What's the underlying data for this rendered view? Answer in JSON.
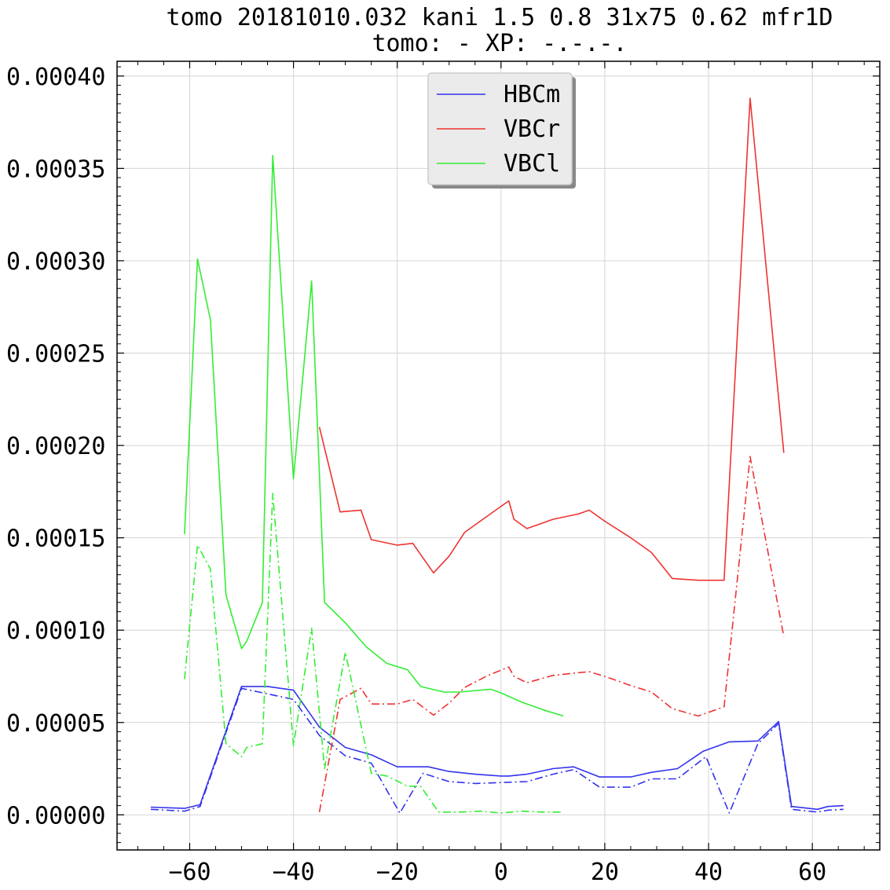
{
  "chart_data": {
    "type": "line",
    "title_lines": [
      "tomo 20181010.032 kani 1.5 0.8 31x75 0.62 mfr1D",
      "tomo: -   XP: -.-.-."
    ],
    "xlabel": "",
    "ylabel": "",
    "xlim": [
      -74,
      73
    ],
    "ylim": [
      -1.9e-05,
      0.000408
    ],
    "x_ticks": [
      -60,
      -40,
      -20,
      0,
      20,
      40,
      60
    ],
    "x_tick_labels": [
      "−60",
      "−40",
      "−20",
      "0",
      "20",
      "40",
      "60"
    ],
    "y_ticks": [
      0.0,
      5e-05,
      0.0001,
      0.00015,
      0.0002,
      0.00025,
      0.0003,
      0.00035,
      0.0004
    ],
    "y_tick_labels": [
      "0.00000",
      "0.00005",
      "0.00010",
      "0.00015",
      "0.00020",
      "0.00025",
      "0.00030",
      "0.00035",
      "0.00040"
    ],
    "grid": true,
    "legend_position": "top-center",
    "series": [
      {
        "name": "HBCm",
        "color": "#3333ee",
        "style": "solid",
        "points": [
          [
            -67.5,
            4.2e-06
          ],
          [
            -61,
            3.5e-06
          ],
          [
            -58,
            5.5e-06
          ],
          [
            -50,
            6.95e-05
          ],
          [
            -45,
            6.95e-05
          ],
          [
            -40,
            6.75e-05
          ],
          [
            -35,
            4.75e-05
          ],
          [
            -30,
            3.65e-05
          ],
          [
            -25,
            3.25e-05
          ],
          [
            -20,
            2.6e-05
          ],
          [
            -14,
            2.6e-05
          ],
          [
            -10,
            2.35e-05
          ],
          [
            -5,
            2.2e-05
          ],
          [
            0,
            2.1e-05
          ],
          [
            1.5,
            2.1e-05
          ],
          [
            5,
            2.2e-05
          ],
          [
            10,
            2.5e-05
          ],
          [
            14,
            2.6e-05
          ],
          [
            19,
            2.05e-05
          ],
          [
            25,
            2.05e-05
          ],
          [
            29,
            2.3e-05
          ],
          [
            34,
            2.5e-05
          ],
          [
            39,
            3.45e-05
          ],
          [
            44,
            3.95e-05
          ],
          [
            49.5,
            4e-05
          ],
          [
            53.5,
            5.05e-05
          ],
          [
            56,
            4.5e-06
          ],
          [
            61,
            3e-06
          ],
          [
            63,
            4.5e-06
          ],
          [
            66,
            5e-06
          ]
        ]
      },
      {
        "name": "",
        "color": "#3333ee",
        "style": "dashdot",
        "points": [
          [
            -67.5,
            3e-06
          ],
          [
            -61,
            2e-06
          ],
          [
            -58,
            4.5e-06
          ],
          [
            -50,
            6.85e-05
          ],
          [
            -45,
            6.55e-05
          ],
          [
            -40,
            6.25e-05
          ],
          [
            -35,
            4.3e-05
          ],
          [
            -30,
            3.2e-05
          ],
          [
            -25,
            2.8e-05
          ],
          [
            -19.5,
            1e-06
          ],
          [
            -15,
            2.25e-05
          ],
          [
            -10,
            1.8e-05
          ],
          [
            -5,
            1.7e-05
          ],
          [
            0,
            1.75e-05
          ],
          [
            5,
            1.8e-05
          ],
          [
            10,
            2.2e-05
          ],
          [
            14,
            2.45e-05
          ],
          [
            19,
            1.5e-05
          ],
          [
            25,
            1.5e-05
          ],
          [
            29,
            1.95e-05
          ],
          [
            34,
            1.95e-05
          ],
          [
            39.5,
            3.15e-05
          ],
          [
            44,
            1e-06
          ],
          [
            49.5,
            3.85e-05
          ],
          [
            53.5,
            4.95e-05
          ],
          [
            56,
            3e-06
          ],
          [
            61,
            1.5e-06
          ],
          [
            63,
            2.5e-06
          ],
          [
            66,
            3e-06
          ]
        ]
      },
      {
        "name": "VBCr",
        "color": "#ee3333",
        "style": "solid",
        "points": [
          [
            -35,
            0.00021
          ],
          [
            -31,
            0.000164
          ],
          [
            -27,
            0.000165
          ],
          [
            -25,
            0.000149
          ],
          [
            -20,
            0.000146
          ],
          [
            -17,
            0.000147
          ],
          [
            -13,
            0.000131
          ],
          [
            -10,
            0.00014
          ],
          [
            -7,
            0.000153
          ],
          [
            -2.5,
            0.000162
          ],
          [
            1.5,
            0.00017
          ],
          [
            2.5,
            0.00016
          ],
          [
            5,
            0.000155
          ],
          [
            10,
            0.00016
          ],
          [
            15,
            0.000163
          ],
          [
            17,
            0.000165
          ],
          [
            20,
            0.000159
          ],
          [
            25,
            0.00015
          ],
          [
            29,
            0.000142
          ],
          [
            33,
            0.000128
          ],
          [
            38,
            0.000127
          ],
          [
            43,
            0.000127
          ],
          [
            48,
            0.000388
          ],
          [
            54.5,
            0.000196
          ]
        ]
      },
      {
        "name": "",
        "color": "#ee3333",
        "style": "dashdot",
        "points": [
          [
            -35,
            1.5e-06
          ],
          [
            -31,
            6.25e-05
          ],
          [
            -27,
            6.85e-05
          ],
          [
            -25,
            6e-05
          ],
          [
            -20,
            6e-05
          ],
          [
            -17,
            6.25e-05
          ],
          [
            -13,
            5.4e-05
          ],
          [
            -10,
            6.05e-05
          ],
          [
            -7,
            6.9e-05
          ],
          [
            -2.5,
            7.55e-05
          ],
          [
            1.5,
            8e-05
          ],
          [
            2.5,
            7.5e-05
          ],
          [
            5,
            7.15e-05
          ],
          [
            10,
            7.55e-05
          ],
          [
            15,
            7.7e-05
          ],
          [
            17,
            7.75e-05
          ],
          [
            20,
            7.5e-05
          ],
          [
            25,
            7e-05
          ],
          [
            29,
            6.65e-05
          ],
          [
            33,
            5.75e-05
          ],
          [
            38,
            5.35e-05
          ],
          [
            43,
            5.85e-05
          ],
          [
            48,
            0.000194
          ],
          [
            54.5,
            9.65e-05
          ]
        ]
      },
      {
        "name": "VBCl",
        "color": "#33ee33",
        "style": "solid",
        "points": [
          [
            -61,
            0.000152
          ],
          [
            -58.5,
            0.000301
          ],
          [
            -56,
            0.000268
          ],
          [
            -53,
            0.000119
          ],
          [
            -50,
            9e-05
          ],
          [
            -49,
            9.4e-05
          ],
          [
            -46,
            0.000115
          ],
          [
            -44,
            0.000357
          ],
          [
            -40,
            0.000182
          ],
          [
            -36.5,
            0.000289
          ],
          [
            -34,
            0.000115
          ],
          [
            -30,
            0.000104
          ],
          [
            -26,
            9.1e-05
          ],
          [
            -22,
            8.2e-05
          ],
          [
            -18,
            7.85e-05
          ],
          [
            -15.5,
            6.95e-05
          ],
          [
            -11,
            6.65e-05
          ],
          [
            -8,
            6.65e-05
          ],
          [
            -2,
            6.8e-05
          ],
          [
            0,
            6.6e-05
          ],
          [
            4,
            6.1e-05
          ],
          [
            8,
            5.7e-05
          ],
          [
            12,
            5.35e-05
          ]
        ]
      },
      {
        "name": "",
        "color": "#33ee33",
        "style": "dashdot",
        "points": [
          [
            -61,
            7.35e-05
          ],
          [
            -58.5,
            0.000146
          ],
          [
            -56,
            0.000133
          ],
          [
            -53,
            3.85e-05
          ],
          [
            -50,
            3.15e-05
          ],
          [
            -49,
            3.65e-05
          ],
          [
            -46,
            3.85e-05
          ],
          [
            -44,
            0.000174
          ],
          [
            -40,
            3.75e-05
          ],
          [
            -36.5,
            0.000101
          ],
          [
            -34,
            2.5e-05
          ],
          [
            -30,
            8.8e-05
          ],
          [
            -25,
            2.25e-05
          ],
          [
            -22,
            2.1e-05
          ],
          [
            -18,
            1.55e-05
          ],
          [
            -15.5,
            1.55e-05
          ],
          [
            -12,
            1.5e-06
          ],
          [
            -8,
            1.5e-06
          ],
          [
            -4,
            2e-06
          ],
          [
            0,
            1e-06
          ],
          [
            4,
            2e-06
          ],
          [
            8,
            1.5e-06
          ],
          [
            12,
            1.5e-06
          ]
        ]
      }
    ]
  }
}
